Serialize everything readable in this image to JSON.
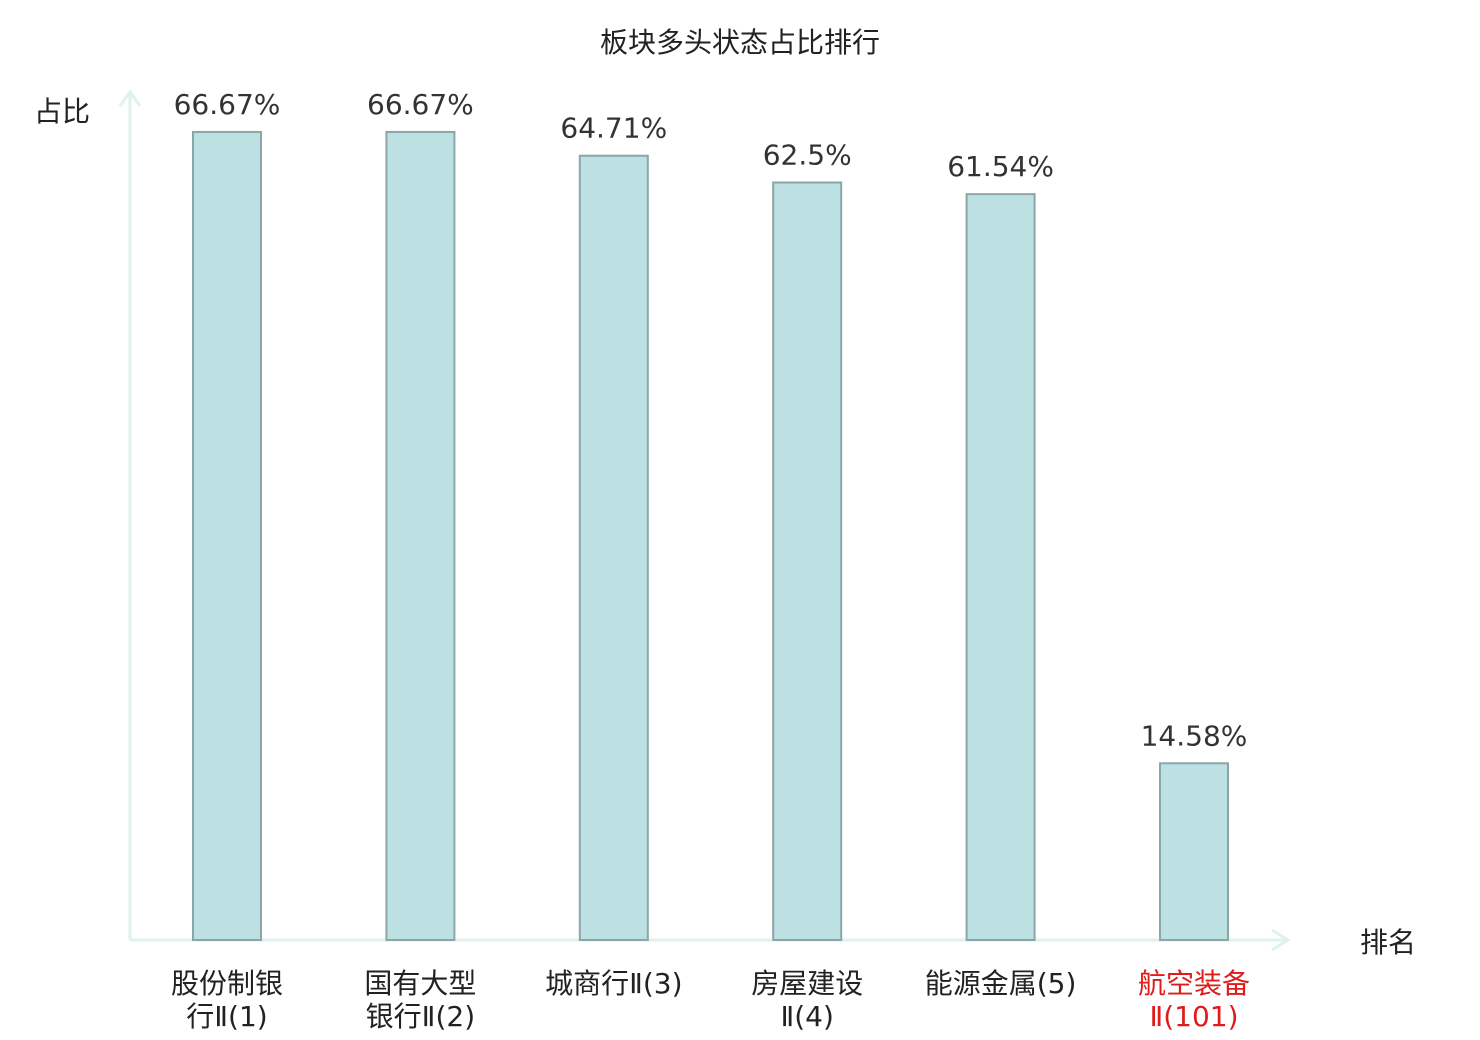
{
  "colors": {
    "bar_fill": "#bde0e3",
    "bar_stroke": "#8aa6a8",
    "axis": "#dff2ee",
    "highlight": "#e01b1b",
    "text": "#222222"
  },
  "chart_data": {
    "type": "bar",
    "title": "板块多头状态占比排行",
    "ylabel": "占比",
    "xlabel": "排名",
    "ylim": [
      0,
      70
    ],
    "grid": false,
    "categories": [
      {
        "line1": "股份制银",
        "line2": "行Ⅱ(1)",
        "highlight": false
      },
      {
        "line1": "国有大型",
        "line2": "银行Ⅱ(2)",
        "highlight": false
      },
      {
        "line1": "城商行Ⅱ(3)",
        "line2": "",
        "highlight": false
      },
      {
        "line1": "房屋建设",
        "line2": "Ⅱ(4)",
        "highlight": false
      },
      {
        "line1": "能源金属(5)",
        "line2": "",
        "highlight": false
      },
      {
        "line1": "航空装备",
        "line2": "Ⅱ(101)",
        "highlight": true
      }
    ],
    "values": [
      66.67,
      66.67,
      64.71,
      62.5,
      61.54,
      14.58
    ],
    "value_labels": [
      "66.67%",
      "66.67%",
      "64.71%",
      "62.5%",
      "61.54%",
      "14.58%"
    ]
  }
}
